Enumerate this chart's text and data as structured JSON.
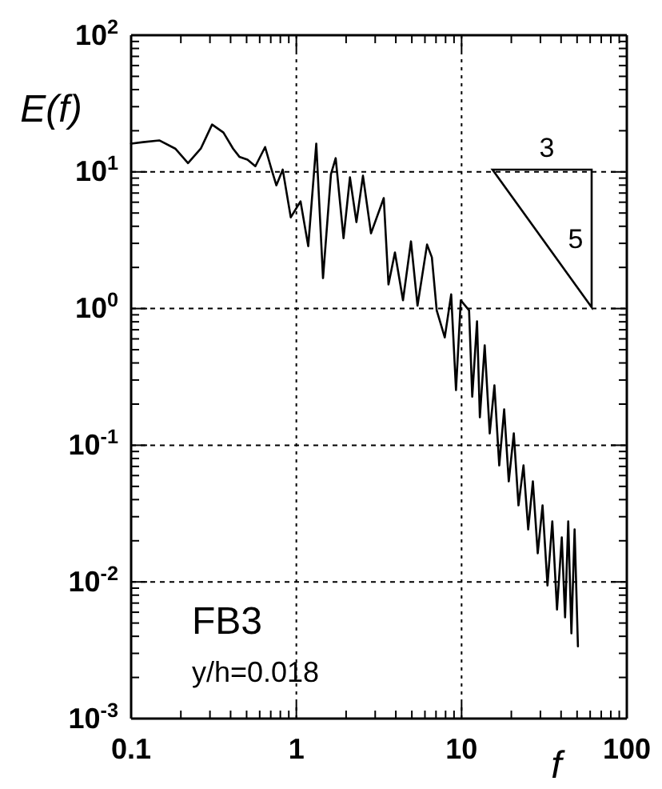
{
  "chart_data": {
    "type": "line",
    "xlabel": "f",
    "ylabel": "E(f)",
    "log": "xy",
    "grid": true,
    "xlim": [
      0.1,
      100
    ],
    "ylim": [
      0.001,
      100
    ],
    "xticks": [
      0.1,
      1,
      10,
      100
    ],
    "yticks": [
      {
        "value": 0.001,
        "label": "10$^{-3}$"
      },
      {
        "value": 0.01,
        "label": "10$^{-2}$"
      },
      {
        "value": 0.1,
        "label": "10$^{-1}$"
      },
      {
        "value": 1,
        "label": "10$^{0}$"
      },
      {
        "value": 10,
        "label": "10$^{1}$"
      },
      {
        "value": 100,
        "label": "10$^{2}$"
      }
    ],
    "annotations": [
      "FB3",
      "y/h=0.018",
      "3",
      "5"
    ],
    "series": [
      {
        "color": "#000000",
        "x": [
          0.1,
          0.118,
          0.148,
          0.185,
          0.221,
          0.264,
          0.309,
          0.362,
          0.414,
          0.452,
          0.506,
          0.565,
          0.647,
          0.708,
          0.757,
          0.827,
          0.925,
          1.06,
          1.18,
          1.32,
          1.45,
          1.62,
          1.73,
          1.93,
          2.11,
          2.31,
          2.53,
          2.83,
          3.38,
          3.61,
          3.95,
          4.42,
          4.94,
          5.41,
          6.18,
          6.61,
          7.07,
          7.91,
          8.65,
          9.25,
          9.89,
          11.1,
          11.6,
          12.4,
          12.9,
          13.8,
          14.8,
          15.8,
          16.9,
          18.1,
          19.3,
          20.7,
          22.1,
          23.7,
          25.3,
          27.0,
          28.9,
          30.9,
          33.1,
          35.4,
          37.8,
          40.4,
          42.3,
          44.2,
          46.2,
          48.3,
          50.6
        ],
        "values": [
          16.1,
          16.5,
          17,
          14.8,
          11.6,
          14.8,
          22.2,
          19.4,
          14.8,
          12.9,
          12.3,
          11.0,
          15.2,
          10.4,
          7.97,
          10.4,
          4.65,
          6.09,
          2.86,
          16.1,
          1.67,
          9.63,
          12.6,
          3.27,
          9.12,
          4.29,
          9.37,
          3.55,
          6.43,
          1.5,
          2.57,
          1.15,
          3.1,
          1.05,
          2.94,
          2.37,
          0.97,
          0.615,
          1.27,
          0.253,
          1.15,
          0.97,
          0.227,
          0.806,
          0.16,
          0.538,
          0.122,
          0.274,
          0.0712,
          0.183,
          0.0544,
          0.122,
          0.0363,
          0.0712,
          0.0242,
          0.0544,
          0.0162,
          0.0363,
          0.00942,
          0.0277,
          0.00629,
          0.0212,
          0.0055,
          0.0277,
          0.0042,
          0.0242,
          0.00338
        ]
      }
    ]
  }
}
